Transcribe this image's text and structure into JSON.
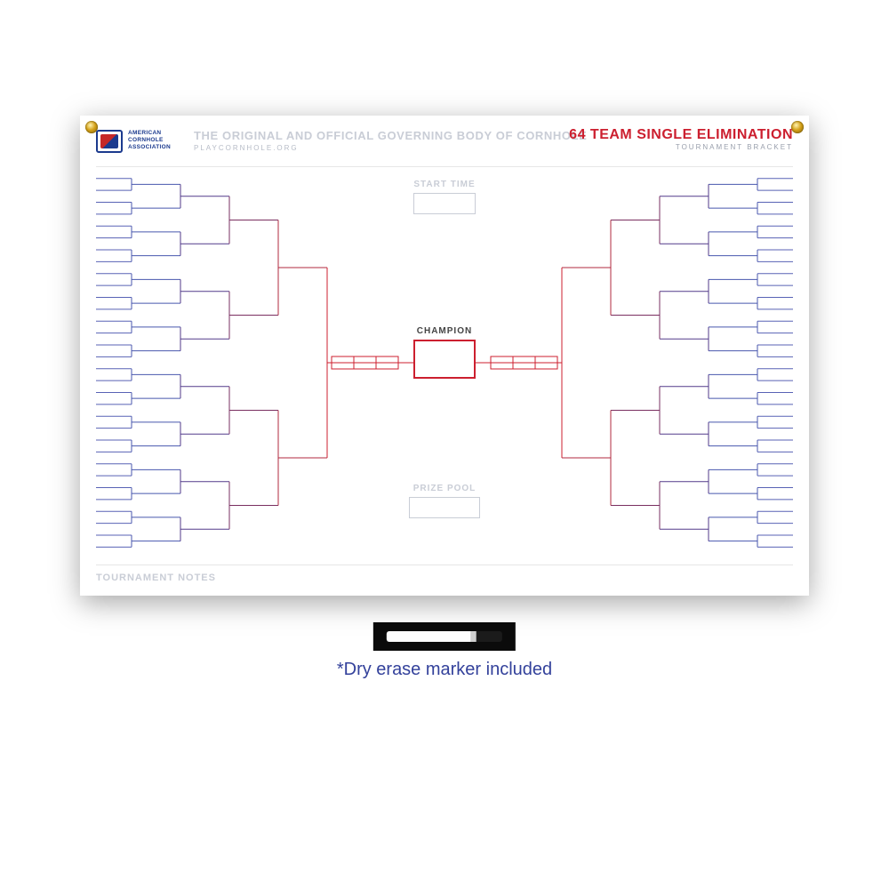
{
  "logo_text": "AMERICAN\nCORNHOLE\nASSOCIATION",
  "tagline": "THE ORIGINAL AND OFFICIAL GOVERNING BODY OF CORNHOLE",
  "subtag": "PLAYCORNHOLE.ORG",
  "title": "64 TEAM SINGLE ELIMINATION",
  "subtitle": "TOURNAMENT BRACKET",
  "labels": {
    "start_time": "START TIME",
    "champion": "CHAMPION",
    "prize_pool": "PRIZE POOL",
    "notes": "TOURNAMENT NOTES"
  },
  "marker_caption": "*Dry erase marker included",
  "bracket": {
    "type": "tournament-bracket",
    "teams": 64,
    "sides": 2,
    "rounds_per_side": 6,
    "area_width": 784,
    "area_height": 428,
    "round_widths": [
      40,
      55,
      55,
      55,
      55,
      55
    ],
    "r1_slot_gap": 2,
    "colors": {
      "r1": "#5862b5",
      "r2": "#4857ae",
      "r3": "#523a8a",
      "r4": "#7a2f60",
      "r5": "#b12a3f",
      "r6": "#cc1f2f",
      "champion": "#cc1f2f",
      "finalist_box": "#cc1f2f",
      "label_muted": "#c9cdd6",
      "info_box_border": "#c9cdd6"
    },
    "line_width": 1,
    "champion_box": {
      "w": 70,
      "h": 44,
      "border_w": 2
    },
    "finalist_box": {
      "w": 50,
      "h": 14,
      "border_w": 1
    }
  },
  "grommets": {
    "color_outer": "#8a6a10",
    "color_inner": "#d4a017"
  }
}
